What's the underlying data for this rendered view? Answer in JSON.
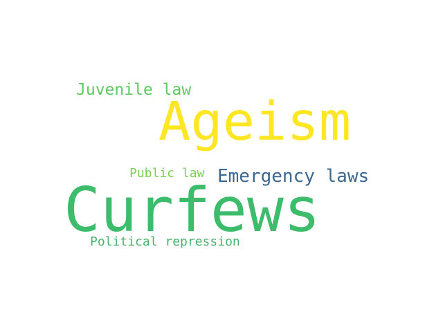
{
  "word_cloud": {
    "words": [
      {
        "text": "Ageism",
        "color": "#fde725"
      },
      {
        "text": "Curfews",
        "color": "#3dbc6b"
      },
      {
        "text": "Juvenile law",
        "color": "#5ec962"
      },
      {
        "text": "Emergency laws",
        "color": "#3b6890"
      },
      {
        "text": "Public law",
        "color": "#7ad151"
      },
      {
        "text": "Political repression",
        "color": "#4ab26d"
      }
    ]
  }
}
